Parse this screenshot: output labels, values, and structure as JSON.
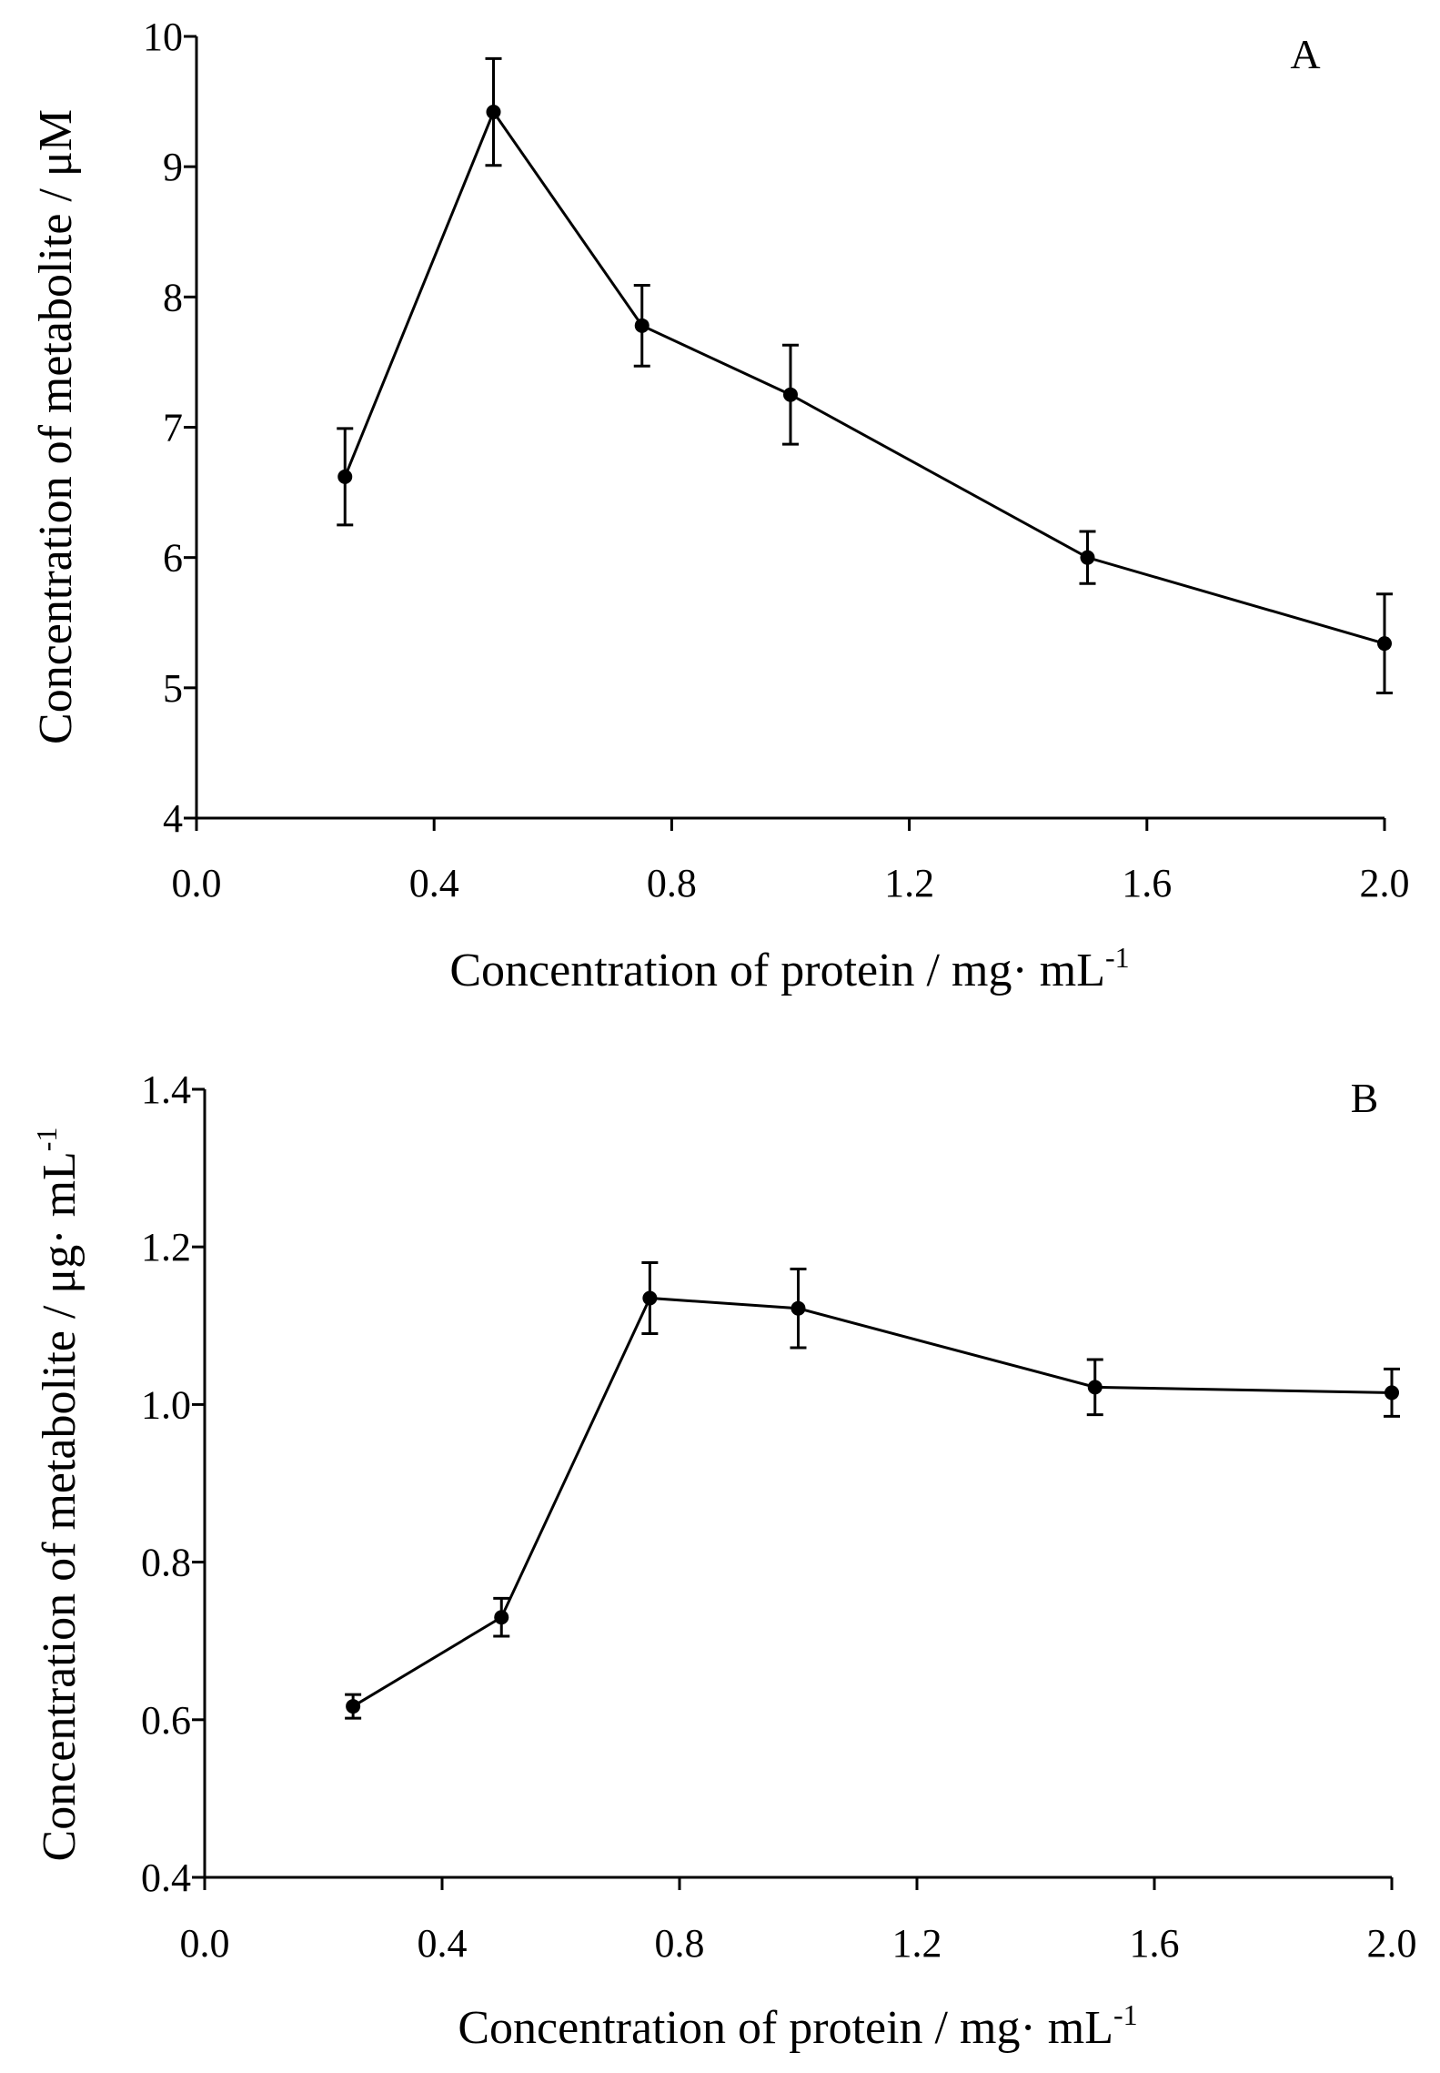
{
  "chart_data": [
    {
      "type": "line",
      "panel": "A",
      "x": [
        0.25,
        0.5,
        0.75,
        1.0,
        1.5,
        2.0
      ],
      "series": [
        {
          "name": "metabolite",
          "values": [
            6.62,
            9.42,
            7.78,
            7.25,
            6.0,
            5.34
          ],
          "errors": [
            0.37,
            0.41,
            0.31,
            0.38,
            0.2,
            0.38
          ]
        }
      ],
      "xlabel": {
        "main": "Concentration of protein  / mg· mL",
        "sup": "-1"
      },
      "ylabel": {
        "main": "Concentration of metabolite  / μM",
        "sup": ""
      },
      "xlim": [
        0.0,
        2.0
      ],
      "ylim": [
        4,
        10
      ],
      "xticks": [
        "0.0",
        "0.4",
        "0.8",
        "1.2",
        "1.6",
        "2.0"
      ],
      "yticks": [
        "4",
        "5",
        "6",
        "7",
        "8",
        "9",
        "10"
      ],
      "grid": false
    },
    {
      "type": "line",
      "panel": "B",
      "x": [
        0.25,
        0.5,
        0.75,
        1.0,
        1.5,
        2.0
      ],
      "series": [
        {
          "name": "metabolite",
          "values": [
            0.617,
            0.73,
            1.135,
            1.122,
            1.022,
            1.015
          ],
          "errors": [
            0.015,
            0.024,
            0.045,
            0.05,
            0.035,
            0.03
          ]
        }
      ],
      "xlabel": {
        "main": "Concentration of protein  / mg· mL",
        "sup": "-1"
      },
      "ylabel": {
        "main": "Concentration of metabolite  / μg· mL",
        "sup": "-1"
      },
      "xlim": [
        0.0,
        2.0
      ],
      "ylim": [
        0.4,
        1.4
      ],
      "xticks": [
        "0.0",
        "0.4",
        "0.8",
        "1.2",
        "1.6",
        "2.0"
      ],
      "yticks": [
        "0.4",
        "0.6",
        "0.8",
        "1.0",
        "1.2",
        "1.4"
      ],
      "grid": false
    }
  ]
}
